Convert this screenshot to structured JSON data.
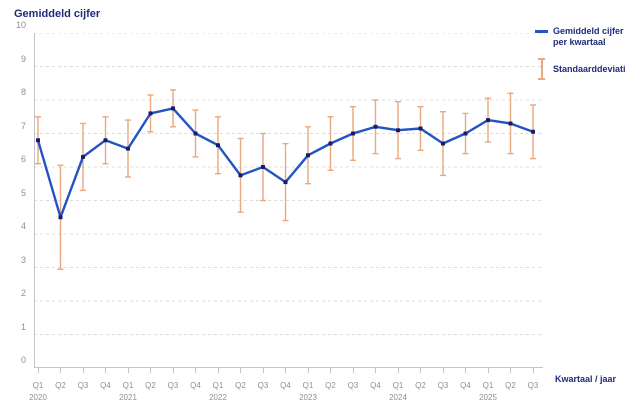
{
  "title": "Gemiddeld cijfer",
  "x_axis_title": "Kwartaal / jaar",
  "legend": {
    "series_label_line1": "Gemiddeld cijfer",
    "series_label_line2": "per kwartaal",
    "sd_label": "Standaarddeviatie"
  },
  "colors": {
    "line": "#2353c4",
    "marker": "#141f6b",
    "error_bar": "#e9a87e",
    "grid": "#dcdcdc",
    "axis_line": "#c4c4c4",
    "tick_text": "#8f8f8f",
    "navy_text": "#202a7c"
  },
  "chart_data": {
    "type": "line",
    "title": "Gemiddeld cijfer",
    "xlabel": "Kwartaal / jaar",
    "ylabel": "Gemiddeld cijfer",
    "ylim": [
      0,
      10
    ],
    "yticks": [
      0,
      1,
      2,
      3,
      4,
      5,
      6,
      7,
      8,
      9,
      10
    ],
    "grid": "horizontal-dashed",
    "legend_position": "top-right",
    "quarters": [
      "Q1",
      "Q2",
      "Q3",
      "Q4",
      "Q1",
      "Q2",
      "Q3",
      "Q4",
      "Q1",
      "Q2",
      "Q3",
      "Q4",
      "Q1",
      "Q2",
      "Q3",
      "Q4",
      "Q1",
      "Q2",
      "Q3",
      "Q4",
      "Q1",
      "Q2",
      "Q3"
    ],
    "years": [
      "2020",
      "2021",
      "2022",
      "2023",
      "2024",
      "2025"
    ],
    "year_tick_indices": [
      0,
      4,
      8,
      12,
      16,
      20
    ],
    "series": [
      {
        "name": "Gemiddeld cijfer per kwartaal",
        "type": "line",
        "values": [
          6.8,
          4.5,
          6.3,
          6.8,
          6.55,
          7.6,
          7.75,
          7.0,
          6.65,
          5.75,
          6.0,
          5.55,
          6.35,
          6.7,
          7.0,
          7.2,
          7.1,
          7.15,
          6.7,
          7.0,
          7.4,
          7.3,
          7.05
        ]
      },
      {
        "name": "Standaarddeviatie",
        "type": "error_bar",
        "values": [
          0.7,
          1.55,
          1.0,
          0.7,
          0.85,
          0.55,
          0.55,
          0.7,
          0.85,
          1.1,
          1.0,
          1.15,
          0.85,
          0.8,
          0.8,
          0.8,
          0.85,
          0.65,
          0.95,
          0.6,
          0.65,
          0.9,
          0.8
        ]
      }
    ]
  }
}
